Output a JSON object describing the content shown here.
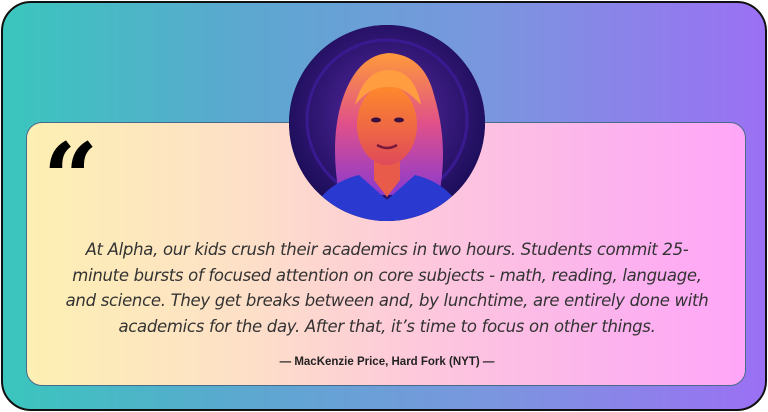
{
  "quote": {
    "mark": "“",
    "text": "At Alpha, our kids crush their academics in two hours. Students commit 25-minute bursts of focused attention on core subjects - math, reading, language, and science. They get breaks between and, by lunchtime, are entirely done with academics for the day. After that, it’s time to focus on other things.",
    "attribution": "— MacKenzie Price, Hard Fork (NYT) —"
  },
  "colors": {
    "gradient_start": "#3ac6bd",
    "gradient_end": "#9b70f4",
    "panel_start": "#fdf0b3",
    "panel_end": "#ffa6f8"
  }
}
